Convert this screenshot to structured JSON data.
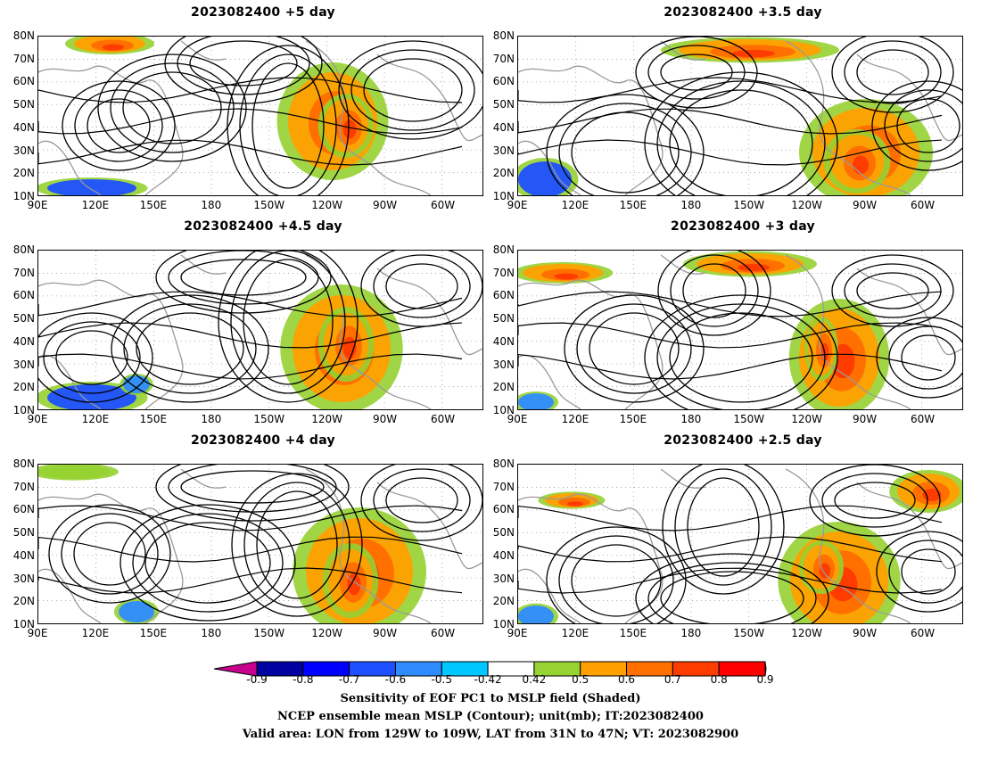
{
  "panels": [
    {
      "title": "2023082400  +5 day"
    },
    {
      "title": "2023082400  +3.5 day"
    },
    {
      "title": "2023082400  +4.5 day"
    },
    {
      "title": "2023082400  +3 day"
    },
    {
      "title": "2023082400  +4 day"
    },
    {
      "title": "2023082400  +2.5 day"
    }
  ],
  "axes": {
    "lat_labels": [
      "80N",
      "70N",
      "60N",
      "50N",
      "40N",
      "30N",
      "20N",
      "10N"
    ],
    "lon_labels": [
      "90E",
      "120E",
      "150E",
      "180",
      "150W",
      "120W",
      "90W",
      "60W"
    ]
  },
  "colorbar": {
    "labels": [
      "-0.9",
      "-0.8",
      "-0.7",
      "-0.6",
      "-0.5",
      "-0.42",
      "0.42",
      "0.5",
      "0.6",
      "0.7",
      "0.8",
      "0.9"
    ],
    "colors": [
      "#0000a0",
      "#0000ff",
      "#1e50ff",
      "#2f8cff",
      "#00c8ff",
      "#ffffff",
      "#96d232",
      "#ffa000",
      "#ff7000",
      "#ff3c00",
      "#ff0000"
    ],
    "low_end_color": "#c8008c",
    "high_end_color": "#ffa0c8"
  },
  "caption": {
    "line1": "Sensitivity of EOF PC1 to MSLP field (Shaded)",
    "line2": "NCEP ensemble mean MSLP (Contour); unit(mb); IT:2023082400",
    "line3": "Valid area: LON from 129W to 109W, LAT from 31N to 47N; VT: 2023082900"
  }
}
